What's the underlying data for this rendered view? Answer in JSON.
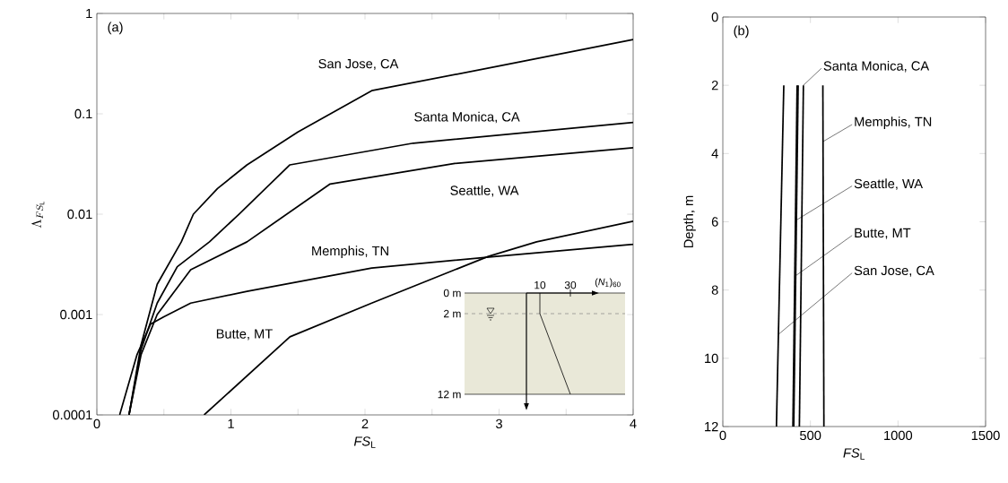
{
  "chart_data": [
    {
      "type": "line",
      "xlabel": "*FS*$_{L}$",
      "ylabel": "\\Lambda_{FS_{\\mathrm{L}}}",
      "log": "y",
      "grid": false,
      "legend": false,
      "marker": "none",
      "xlim": [
        0,
        4
      ],
      "ylim": [
        0.0001,
        1
      ],
      "xticks": [
        0,
        {
          "value": 0.5,
          "label": null
        },
        1,
        {
          "value": 1.5,
          "label": null
        },
        2,
        {
          "value": 2.5,
          "label": null
        },
        3,
        {
          "value": 3.5,
          "label": null
        },
        4
      ],
      "yticks": [
        0.0001,
        0.001,
        0.01,
        0.1,
        1
      ],
      "annotations": [
        "(a)",
        "0 m",
        "2 m",
        "12 m",
        "10",
        "30",
        "(*N*$_{1}$)$_{60}$"
      ],
      "series": [
        {
          "name": "San Jose, CA",
          "color": "#000000",
          "x": [
            0.24,
            0.33,
            0.45,
            0.63,
            0.72,
            0.9,
            1.12,
            1.5,
            2.05,
            3.0,
            4.0
          ],
          "values": [
            0.0001,
            0.0005,
            0.002,
            0.0053,
            0.01,
            0.018,
            0.031,
            0.066,
            0.17,
            0.3,
            0.55
          ]
        },
        {
          "name": "Santa Monica, CA",
          "color": "#000000",
          "x": [
            0.24,
            0.33,
            0.45,
            0.6,
            0.84,
            1.06,
            1.44,
            2.36,
            4.0
          ],
          "values": [
            0.0001,
            0.00045,
            0.0013,
            0.003,
            0.0053,
            0.01,
            0.031,
            0.051,
            0.082
          ]
        },
        {
          "name": "Seattle, WA",
          "color": "#000000",
          "x": [
            0.24,
            0.33,
            0.45,
            0.7,
            1.12,
            1.74,
            2.67,
            4.0
          ],
          "values": [
            0.0001,
            0.0004,
            0.001,
            0.0028,
            0.0053,
            0.02,
            0.032,
            0.046
          ]
        },
        {
          "name": "Memphis, TN",
          "color": "#000000",
          "x": [
            0.17,
            0.3,
            0.4,
            0.5,
            0.7,
            1.12,
            2.05,
            2.98,
            4.0
          ],
          "values": [
            0.0001,
            0.0004,
            0.0008,
            0.00095,
            0.0013,
            0.0017,
            0.0029,
            0.0038,
            0.005
          ]
        },
        {
          "name": "Butte, MT",
          "color": "#000000",
          "x": [
            0.8,
            1.44,
            2.05,
            2.92,
            3.28,
            4.0
          ],
          "values": [
            0.0001,
            0.0006,
            0.0013,
            0.0038,
            0.0053,
            0.0085
          ]
        }
      ]
    },
    {
      "type": "line",
      "xlabel": "*FS*$_{L}$",
      "ylabel": "Depth, m",
      "grid": false,
      "legend": false,
      "marker": "none",
      "xlim": [
        0,
        1500
      ],
      "ylim": [
        12,
        0
      ],
      "xticks": [
        0,
        500,
        1000,
        1500
      ],
      "yticks": [
        0,
        2,
        4,
        6,
        8,
        10,
        12
      ],
      "annotations": [
        "(b)"
      ],
      "series": [
        {
          "name": "San Jose, CA",
          "color": "#000000",
          "x": [
            348,
            306
          ],
          "values": [
            2,
            12
          ]
        },
        {
          "name": "Santa Monica, CA",
          "color": "#000000",
          "x": [
            460,
            437
          ],
          "values": [
            2,
            12
          ]
        },
        {
          "name": "Seattle, WA",
          "color": "#000000",
          "x": [
            430,
            405
          ],
          "values": [
            2,
            12
          ]
        },
        {
          "name": "Memphis, TN",
          "color": "#000000",
          "x": [
            571,
            577
          ],
          "values": [
            2,
            12
          ]
        },
        {
          "name": "Butte, MT",
          "color": "#000000",
          "x": [
            424,
            400
          ],
          "values": [
            2,
            12
          ]
        }
      ]
    }
  ]
}
